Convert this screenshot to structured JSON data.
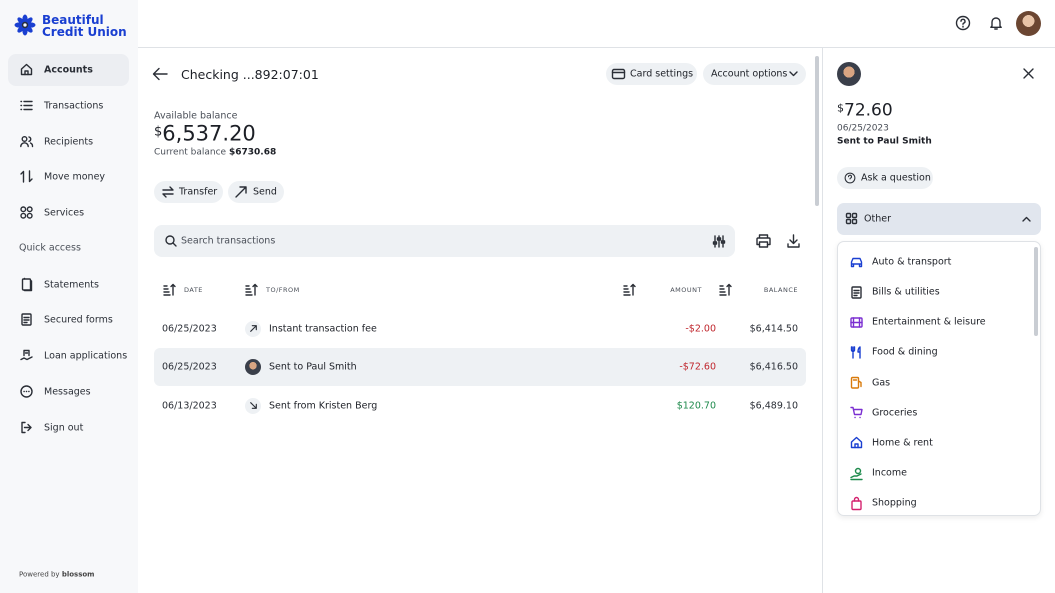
{
  "brand": {
    "line1": "Beautiful",
    "line2": "Credit Union"
  },
  "sidebar": {
    "nav": [
      "Accounts",
      "Transactions",
      "Recipients",
      "Move money",
      "Services"
    ],
    "quick_access": "Quick access",
    "quick_links": [
      "Statements",
      "Secured forms",
      "Loan applications",
      "Messages",
      "Sign out"
    ],
    "powered_by": "Powered by",
    "powered_brand": "blossom"
  },
  "account": {
    "title": "Checking ...892:07:01",
    "card_settings": "Card settings",
    "account_options": "Account options",
    "available_label": "Available balance",
    "available_currency": "$",
    "available_amount": "6,537.20",
    "current_label": "Current balance",
    "current_value": "$6730.68",
    "transfer": "Transfer",
    "send": "Send",
    "search_placeholder": "Search transactions"
  },
  "table": {
    "headers": [
      "DATE",
      "TO/FROM",
      "AMOUNT",
      "BALANCE"
    ],
    "rows": [
      [
        "06/25/2023",
        "Instant transaction fee",
        "-$2.00",
        "$6,414.50"
      ],
      [
        "06/25/2023",
        "Sent to Paul Smith",
        "-$72.60",
        "$6,416.50"
      ],
      [
        "06/13/2023",
        "Sent from Kristen Berg",
        "$120.70",
        "$6,489.10"
      ]
    ]
  },
  "detail": {
    "currency": "$",
    "amount": "72.60",
    "date": "06/25/2023",
    "description": "Sent to Paul Smith",
    "ask_question": "Ask a question",
    "category": "Other",
    "categories": [
      "Auto & transport",
      "Bills & utilities",
      "Entertainment & leisure",
      "Food & dining",
      "Gas",
      "Groceries",
      "Home & rent",
      "Income",
      "Shopping"
    ]
  }
}
